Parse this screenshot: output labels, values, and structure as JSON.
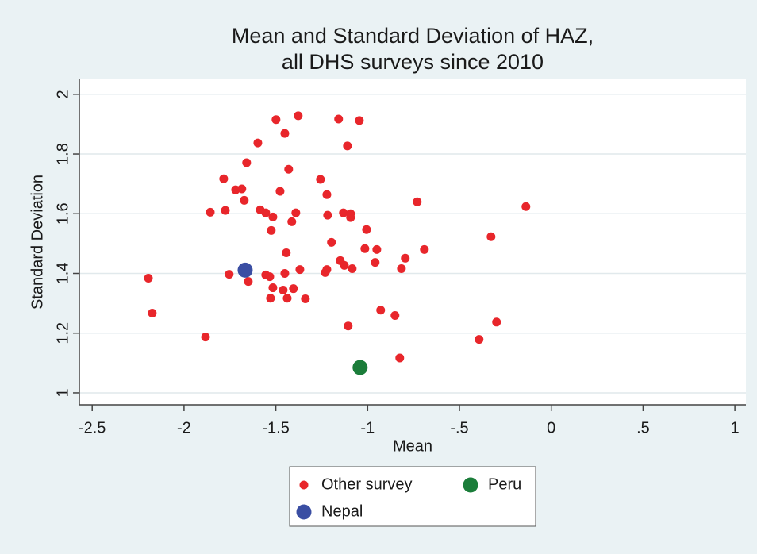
{
  "chart_data": {
    "type": "scatter",
    "title": [
      "Mean and Standard Deviation of HAZ,",
      "all DHS surveys since 2010"
    ],
    "x_label": "Mean",
    "y_label": "Standard Deviation",
    "xlim": [
      -2.57,
      1.06
    ],
    "ylim": [
      0.96,
      2.05
    ],
    "xticks": [
      -2.5,
      -2,
      -1.5,
      -1,
      {
        "value": -0.5,
        "label": "-.5"
      },
      0,
      {
        "value": 0.5,
        "label": ".5"
      },
      1
    ],
    "yticks": [
      1,
      1.2,
      1.4,
      1.6,
      1.8,
      2
    ],
    "grid": true,
    "legend": "bottom",
    "series": [
      {
        "name": "Other survey",
        "color": "#e8262b",
        "x": [
          -2.194,
          -2.173,
          -1.883,
          -1.857,
          -1.784,
          -1.775,
          -1.754,
          -1.719,
          -1.685,
          -1.672,
          -1.659,
          -1.65,
          -1.598,
          -1.585,
          -1.555,
          -1.555,
          -1.533,
          -1.529,
          -1.525,
          -1.516,
          -1.516,
          -1.499,
          -1.477,
          -1.46,
          -1.451,
          -1.451,
          -1.443,
          -1.438,
          -1.43,
          -1.413,
          -1.404,
          -1.391,
          -1.378,
          -1.369,
          -1.339,
          -1.257,
          -1.231,
          -1.222,
          -1.222,
          -1.218,
          -1.197,
          -1.158,
          -1.149,
          -1.132,
          -1.127,
          -1.11,
          -1.106,
          -1.093,
          -1.093,
          -1.084,
          -1.045,
          -1.015,
          -1.006,
          -0.959,
          -0.95,
          -0.929,
          -0.851,
          -0.825,
          -0.816,
          -0.795,
          -0.73,
          -0.691,
          -0.393,
          -0.328,
          -0.298,
          -0.138
        ],
        "values": [
          1.384,
          1.267,
          1.187,
          1.605,
          1.717,
          1.611,
          1.397,
          1.68,
          1.683,
          1.645,
          1.771,
          1.373,
          1.837,
          1.613,
          1.603,
          1.395,
          1.389,
          1.317,
          1.544,
          1.589,
          1.352,
          1.915,
          1.675,
          1.344,
          1.869,
          1.4,
          1.469,
          1.317,
          1.749,
          1.573,
          1.349,
          1.603,
          1.928,
          1.413,
          1.315,
          1.715,
          1.403,
          1.413,
          1.664,
          1.595,
          1.504,
          1.917,
          1.443,
          1.603,
          1.427,
          1.827,
          1.224,
          1.587,
          1.6,
          1.416,
          1.912,
          1.483,
          1.547,
          1.437,
          1.48,
          1.277,
          1.259,
          1.117,
          1.416,
          1.451,
          1.64,
          1.48,
          1.179,
          1.523,
          1.237,
          1.624
        ]
      },
      {
        "name": "Peru",
        "color": "#1b7d3a",
        "x": [
          -1.041
        ],
        "values": [
          1.085
        ]
      },
      {
        "name": "Nepal",
        "color": "#3a4ea3",
        "x": [
          -1.667
        ],
        "values": [
          1.411
        ]
      }
    ]
  }
}
